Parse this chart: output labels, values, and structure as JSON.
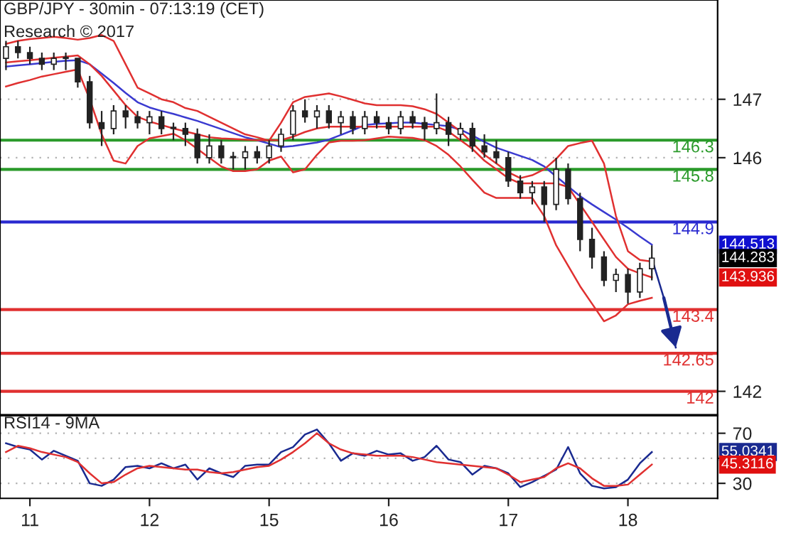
{
  "chart_data": [
    {
      "type": "candlestick",
      "title": "GBP/JPY - 30min - 07:13:19 (CET)",
      "subtitle": "Research © 2017",
      "categories": [
        null,
        null,
        "11",
        null,
        null,
        null,
        null,
        null,
        null,
        null,
        null,
        null,
        "12",
        null,
        null,
        null,
        null,
        null,
        null,
        null,
        null,
        null,
        "15",
        null,
        null,
        null,
        null,
        null,
        null,
        null,
        null,
        null,
        "16",
        null,
        null,
        null,
        null,
        null,
        null,
        null,
        null,
        null,
        "17",
        null,
        null,
        null,
        null,
        null,
        null,
        null,
        null,
        null,
        "18",
        null,
        null,
        null,
        null,
        null,
        null,
        null
      ],
      "ohlc": [
        [
          147.7,
          148.0,
          147.5,
          147.9
        ],
        [
          147.9,
          148.0,
          147.7,
          147.8
        ],
        [
          147.8,
          147.9,
          147.6,
          147.7
        ],
        [
          147.7,
          147.8,
          147.5,
          147.6
        ],
        [
          147.6,
          147.8,
          147.5,
          147.7
        ],
        [
          147.7,
          147.8,
          147.5,
          147.7
        ],
        [
          147.7,
          147.7,
          147.2,
          147.3
        ],
        [
          147.3,
          147.4,
          146.5,
          146.6
        ],
        [
          146.6,
          146.8,
          146.2,
          146.5
        ],
        [
          146.5,
          146.9,
          146.4,
          146.8
        ],
        [
          146.8,
          146.9,
          146.5,
          146.7
        ],
        [
          146.7,
          146.8,
          146.5,
          146.6
        ],
        [
          146.6,
          146.8,
          146.4,
          146.7
        ],
        [
          146.7,
          146.8,
          146.4,
          146.5
        ],
        [
          146.5,
          146.6,
          146.3,
          146.5
        ],
        [
          146.5,
          146.6,
          146.2,
          146.4
        ],
        [
          146.4,
          146.5,
          145.9,
          146.0
        ],
        [
          146.0,
          146.4,
          145.9,
          146.2
        ],
        [
          146.2,
          146.3,
          145.9,
          146.0
        ],
        [
          146.0,
          146.1,
          145.8,
          146.0
        ],
        [
          146.0,
          146.2,
          145.8,
          146.1
        ],
        [
          146.1,
          146.2,
          145.9,
          146.0
        ],
        [
          146.0,
          146.3,
          145.9,
          146.2
        ],
        [
          146.2,
          146.5,
          146.1,
          146.4
        ],
        [
          146.4,
          146.9,
          146.3,
          146.8
        ],
        [
          146.8,
          147.0,
          146.6,
          146.7
        ],
        [
          146.7,
          146.9,
          146.5,
          146.8
        ],
        [
          146.8,
          146.9,
          146.5,
          146.6
        ],
        [
          146.6,
          146.8,
          146.4,
          146.7
        ],
        [
          146.7,
          146.8,
          146.4,
          146.5
        ],
        [
          146.5,
          146.8,
          146.4,
          146.7
        ],
        [
          146.7,
          146.8,
          146.5,
          146.6
        ],
        [
          146.6,
          146.7,
          146.4,
          146.5
        ],
        [
          146.5,
          146.8,
          146.4,
          146.7
        ],
        [
          146.7,
          146.8,
          146.5,
          146.6
        ],
        [
          146.6,
          146.7,
          146.3,
          146.5
        ],
        [
          146.5,
          147.1,
          146.4,
          146.6
        ],
        [
          146.6,
          146.7,
          146.2,
          146.4
        ],
        [
          146.4,
          146.6,
          146.3,
          146.5
        ],
        [
          146.5,
          146.6,
          146.1,
          146.2
        ],
        [
          146.2,
          146.4,
          146.0,
          146.1
        ],
        [
          146.1,
          146.3,
          145.9,
          146.0
        ],
        [
          146.0,
          146.1,
          145.5,
          145.6
        ],
        [
          145.6,
          145.7,
          145.3,
          145.4
        ],
        [
          145.4,
          145.6,
          145.2,
          145.5
        ],
        [
          145.5,
          145.6,
          144.9,
          145.2
        ],
        [
          145.2,
          146.0,
          145.1,
          145.8
        ],
        [
          145.8,
          145.9,
          145.2,
          145.3
        ],
        [
          145.3,
          145.4,
          144.4,
          144.6
        ],
        [
          144.6,
          144.8,
          144.1,
          144.3
        ],
        [
          144.3,
          144.4,
          143.8,
          143.9
        ],
        [
          143.9,
          144.1,
          143.7,
          144.0
        ],
        [
          144.0,
          144.1,
          143.5,
          143.7
        ],
        [
          143.7,
          144.2,
          143.6,
          144.1
        ],
        [
          144.1,
          144.5,
          143.9,
          144.28
        ],
        null,
        null,
        null,
        null,
        null
      ],
      "series": [
        {
          "type": "line",
          "color": "#3a3ad0",
          "values": [
            147.56,
            147.58,
            147.6,
            147.62,
            147.64,
            147.66,
            147.67,
            147.6,
            147.44,
            147.28,
            147.11,
            146.95,
            146.86,
            146.8,
            146.75,
            146.69,
            146.63,
            146.56,
            146.49,
            146.42,
            146.35,
            146.3,
            146.24,
            146.18,
            146.2,
            146.23,
            146.26,
            146.31,
            146.39,
            146.47,
            146.56,
            146.58,
            146.59,
            146.6,
            146.6,
            146.58,
            146.56,
            146.54,
            146.48,
            146.38,
            146.27,
            146.17,
            146.1,
            146.03,
            145.96,
            145.85,
            145.68,
            145.51,
            145.34,
            145.2,
            145.07,
            144.94,
            144.8,
            144.65,
            144.51,
            null,
            null,
            null,
            null,
            null
          ]
        },
        {
          "type": "line",
          "color": "#e03030",
          "values": [
            147.95,
            148.0,
            148.03,
            148.05,
            148.07,
            148.05,
            148.02,
            148.05,
            148.1,
            148.0,
            147.6,
            147.2,
            147.1,
            147.0,
            146.95,
            146.85,
            146.8,
            146.7,
            146.6,
            146.5,
            146.4,
            146.35,
            146.29,
            146.6,
            146.95,
            147.04,
            147.07,
            147.1,
            147.05,
            146.99,
            146.93,
            146.9,
            146.9,
            146.9,
            146.88,
            146.83,
            146.75,
            146.6,
            146.45,
            146.25,
            146.05,
            145.9,
            145.75,
            145.65,
            145.7,
            145.8,
            145.98,
            146.2,
            146.25,
            146.29,
            145.9,
            145.0,
            144.4,
            144.25,
            144.22,
            null,
            null,
            null,
            null,
            null
          ]
        },
        {
          "type": "line",
          "color": "#e03030",
          "values": [
            147.22,
            147.28,
            147.33,
            147.39,
            147.43,
            147.47,
            147.51,
            147.0,
            146.4,
            145.95,
            145.9,
            146.2,
            146.33,
            146.37,
            146.41,
            146.3,
            146.15,
            146.0,
            145.85,
            145.77,
            145.77,
            145.8,
            145.95,
            146.02,
            145.75,
            145.8,
            146.05,
            146.26,
            146.29,
            146.29,
            146.3,
            146.33,
            146.36,
            146.35,
            146.34,
            146.3,
            146.2,
            146.05,
            145.85,
            145.62,
            145.4,
            145.31,
            145.31,
            145.31,
            145.31,
            145.0,
            144.5,
            144.15,
            143.8,
            143.5,
            143.2,
            143.3,
            143.49,
            143.55,
            143.6,
            null,
            null,
            null,
            null,
            null
          ]
        },
        {
          "type": "line",
          "color": "#e03030",
          "values": [
            147.63,
            147.65,
            147.67,
            147.69,
            147.71,
            147.73,
            147.75,
            147.6,
            147.4,
            147.15,
            146.9,
            146.7,
            146.62,
            146.56,
            146.5,
            146.45,
            146.4,
            146.35,
            146.33,
            146.32,
            146.31,
            146.3,
            146.3,
            146.3,
            146.36,
            146.44,
            146.5,
            146.53,
            146.53,
            146.53,
            146.53,
            146.53,
            146.53,
            146.53,
            146.53,
            146.53,
            146.53,
            146.45,
            146.3,
            146.15,
            145.95,
            145.8,
            145.65,
            145.56,
            145.56,
            145.56,
            145.56,
            145.5,
            145.2,
            144.9,
            144.6,
            144.3,
            144.1,
            144.02,
            143.95,
            null,
            null,
            null,
            null,
            null
          ]
        },
        {
          "type": "line",
          "color": "#1a2a90",
          "values": [
            null,
            null,
            null,
            null,
            null,
            null,
            null,
            null,
            null,
            null,
            null,
            null,
            null,
            null,
            null,
            null,
            null,
            null,
            null,
            null,
            null,
            null,
            null,
            null,
            null,
            null,
            null,
            null,
            null,
            null,
            null,
            null,
            null,
            null,
            null,
            null,
            null,
            null,
            null,
            null,
            null,
            null,
            null,
            null,
            null,
            null,
            null,
            null,
            null,
            null,
            null,
            null,
            null,
            null,
            144.28,
            143.6,
            142.75,
            null,
            null,
            null
          ]
        }
      ],
      "ref_lines": [
        {
          "axis": "y",
          "value": 146.3,
          "label": "146.3",
          "color": "#2a9a2a"
        },
        {
          "axis": "y",
          "value": 145.8,
          "label": "145.8",
          "color": "#2a9a2a"
        },
        {
          "axis": "y",
          "value": 144.9,
          "label": "144.9",
          "color": "#2a2ad0"
        },
        {
          "axis": "y",
          "value": 143.4,
          "label": "143.4",
          "color": "#e03030"
        },
        {
          "axis": "y",
          "value": 142.65,
          "label": "142.65",
          "color": "#e03030"
        },
        {
          "axis": "y",
          "value": 142,
          "label": "142",
          "color": "#e03030"
        }
      ],
      "annotations": [
        "144.513",
        "144.283",
        "143.936"
      ],
      "ylim": [
        141.6,
        148.7
      ],
      "yticks": [
        147,
        146,
        142
      ],
      "grid": "y",
      "tick_labels": "y"
    },
    {
      "type": "line",
      "title": "RSI14 - 9MA",
      "categories": [
        null,
        null,
        "11",
        null,
        null,
        null,
        null,
        null,
        null,
        null,
        null,
        null,
        "12",
        null,
        null,
        null,
        null,
        null,
        null,
        null,
        null,
        null,
        "15",
        null,
        null,
        null,
        null,
        null,
        null,
        null,
        null,
        null,
        "16",
        null,
        null,
        null,
        null,
        null,
        null,
        null,
        null,
        null,
        "17",
        null,
        null,
        null,
        null,
        null,
        null,
        null,
        null,
        null,
        "18",
        null,
        null,
        null,
        null,
        null,
        null,
        null
      ],
      "series": [
        {
          "color": "#1a2a90",
          "values": [
            62,
            59,
            57,
            49,
            56,
            52,
            48,
            30,
            28,
            33,
            43,
            44,
            42,
            46,
            42,
            45,
            33,
            42,
            38,
            35,
            44,
            45,
            45,
            55,
            59,
            69,
            73,
            62,
            48,
            54,
            52,
            56,
            53,
            54,
            48,
            51,
            60,
            49,
            47,
            37,
            44,
            42,
            38,
            27,
            31,
            36,
            41,
            59,
            38,
            28,
            26,
            27,
            33,
            46,
            55,
            null,
            null,
            null,
            null,
            null
          ]
        },
        {
          "color": "#e03030",
          "values": [
            55,
            60,
            58,
            55,
            53,
            51,
            47,
            38,
            30,
            31,
            37,
            42,
            44,
            43,
            42,
            41,
            41,
            39,
            38,
            39,
            41,
            43,
            44,
            49,
            55,
            62,
            70,
            62,
            57,
            54,
            53,
            52,
            52,
            52,
            51,
            49,
            47,
            46,
            45,
            44,
            43,
            42,
            37,
            31,
            33,
            35,
            42,
            46,
            42,
            34,
            28,
            28,
            29,
            37,
            45,
            null,
            null,
            null,
            null,
            null
          ]
        }
      ],
      "annotations": [
        "55.0341",
        "45.3116"
      ],
      "ylim": [
        18,
        84
      ],
      "yticks": [
        70,
        {
          "value": 50,
          "label": null
        },
        30
      ],
      "grid": "y"
    }
  ]
}
